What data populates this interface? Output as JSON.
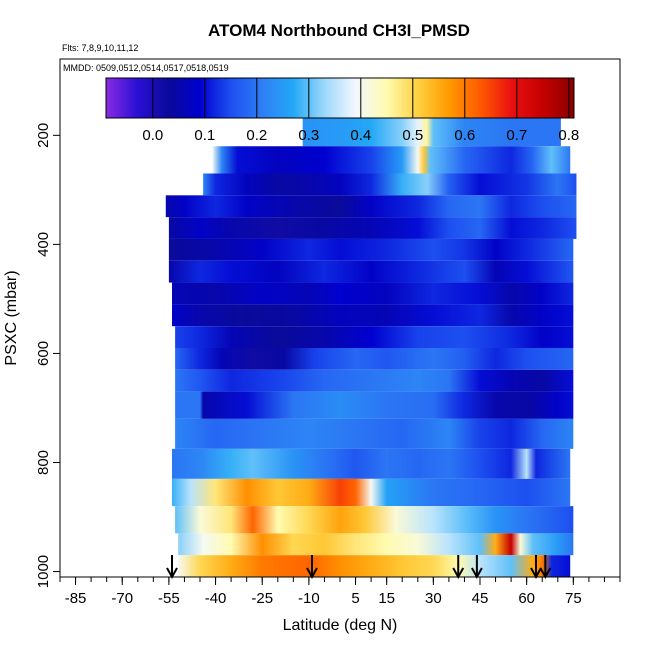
{
  "chart_data": {
    "type": "heatmap",
    "title": "ATOM4 Northbound CH3I_PMSD",
    "meta_flights": "Flts: 7,8,9,10,11,12",
    "meta_dates": "MMDD: 0509,0512,0514,0517,0518,0519",
    "xlabel": "Latitude (deg N)",
    "ylabel": "PSXC (mbar)",
    "xlim": [
      -90,
      90
    ],
    "ylim": [
      1010,
      60
    ],
    "y_inverted": true,
    "x_ticks": [
      -85,
      -70,
      -55,
      -40,
      -25,
      -10,
      5,
      15,
      30,
      45,
      60,
      75
    ],
    "x_tick_labels": [
      "-85",
      "-70",
      "-55",
      "-40",
      "-25",
      "-10",
      "5",
      "15",
      "30",
      "45",
      "60",
      "75"
    ],
    "y_ticks": [
      200,
      400,
      600,
      800,
      1000
    ],
    "y_tick_labels": [
      "200",
      "400",
      "600",
      "800",
      "1000"
    ],
    "colorbar": {
      "range": [
        -0.09,
        0.81
      ],
      "ticks": [
        0.0,
        0.1,
        0.2,
        0.3,
        0.4,
        0.5,
        0.6,
        0.7,
        0.8
      ],
      "tick_labels": [
        "0.0",
        "0.1",
        "0.2",
        "0.3",
        "0.4",
        "0.5",
        "0.6",
        "0.7",
        "0.8"
      ],
      "colors": [
        "#8a2be2",
        "#2b0fd6",
        "#0a0a9a",
        "#0000d0",
        "#1d4ff0",
        "#2e7ef5",
        "#23a8f6",
        "#9cd8fb",
        "#f3f8ff",
        "#fffbb0",
        "#ffd040",
        "#ff9a00",
        "#ff5a00",
        "#ea1010",
        "#c40000",
        "#8a0000"
      ]
    },
    "arrow_latitudes": [
      -54,
      -9,
      38,
      44,
      63,
      66
    ],
    "levels": [
      {
        "p_min": 165,
        "p_max": 220,
        "lat_min": -12,
        "lat_max": 71,
        "nodes": [
          [
            -12,
            0.24
          ],
          [
            0,
            0.25
          ],
          [
            10,
            0.27
          ],
          [
            20,
            0.32
          ],
          [
            25,
            0.38
          ],
          [
            28,
            0.46
          ],
          [
            30,
            0.3
          ],
          [
            40,
            0.22
          ],
          [
            55,
            0.2
          ],
          [
            71,
            0.2
          ]
        ]
      },
      {
        "p_min": 220,
        "p_max": 270,
        "lat_min": -41,
        "lat_max": 74,
        "nodes": [
          [
            -41,
            0.4
          ],
          [
            -38,
            0.22
          ],
          [
            -33,
            0.1
          ],
          [
            -20,
            0.07
          ],
          [
            -5,
            0.09
          ],
          [
            10,
            0.14
          ],
          [
            20,
            0.25
          ],
          [
            25,
            0.4
          ],
          [
            27,
            0.52
          ],
          [
            29,
            0.3
          ],
          [
            40,
            0.18
          ],
          [
            55,
            0.12
          ],
          [
            62,
            0.18
          ],
          [
            68,
            0.3
          ],
          [
            74,
            0.2
          ]
        ]
      },
      {
        "p_min": 270,
        "p_max": 310,
        "lat_min": -44,
        "lat_max": 76,
        "nodes": [
          [
            -44,
            0.22
          ],
          [
            -40,
            0.12
          ],
          [
            -30,
            0.07
          ],
          [
            -20,
            0.04
          ],
          [
            -10,
            0.05
          ],
          [
            0,
            0.07
          ],
          [
            10,
            0.12
          ],
          [
            20,
            0.28
          ],
          [
            28,
            0.32
          ],
          [
            35,
            0.17
          ],
          [
            45,
            0.1
          ],
          [
            60,
            0.13
          ],
          [
            70,
            0.2
          ],
          [
            76,
            0.15
          ]
        ]
      },
      {
        "p_min": 310,
        "p_max": 350,
        "lat_min": -56,
        "lat_max": 76,
        "nodes": [
          [
            -56,
            0.05
          ],
          [
            -50,
            0.08
          ],
          [
            -40,
            0.12
          ],
          [
            -30,
            0.08
          ],
          [
            -15,
            0.05
          ],
          [
            0,
            0.03
          ],
          [
            10,
            0.08
          ],
          [
            25,
            0.12
          ],
          [
            35,
            0.18
          ],
          [
            45,
            0.2
          ],
          [
            55,
            0.12
          ],
          [
            65,
            0.15
          ],
          [
            76,
            0.18
          ]
        ]
      },
      {
        "p_min": 350,
        "p_max": 390,
        "lat_min": -55,
        "lat_max": 76,
        "nodes": [
          [
            -55,
            0.04
          ],
          [
            -45,
            0.08
          ],
          [
            -35,
            0.05
          ],
          [
            -20,
            0.02
          ],
          [
            -5,
            0.04
          ],
          [
            10,
            0.06
          ],
          [
            25,
            0.1
          ],
          [
            35,
            0.15
          ],
          [
            45,
            0.18
          ],
          [
            55,
            0.1
          ],
          [
            65,
            0.12
          ],
          [
            76,
            0.15
          ]
        ]
      },
      {
        "p_min": 390,
        "p_max": 430,
        "lat_min": -55,
        "lat_max": 75,
        "nodes": [
          [
            -55,
            0.03
          ],
          [
            -40,
            0.05
          ],
          [
            -25,
            0.08
          ],
          [
            -10,
            0.12
          ],
          [
            0,
            0.1
          ],
          [
            15,
            0.12
          ],
          [
            30,
            0.15
          ],
          [
            40,
            0.13
          ],
          [
            50,
            0.08
          ],
          [
            60,
            0.12
          ],
          [
            75,
            0.18
          ]
        ]
      },
      {
        "p_min": 430,
        "p_max": 470,
        "lat_min": -55,
        "lat_max": 75,
        "nodes": [
          [
            -55,
            0.05
          ],
          [
            -45,
            0.12
          ],
          [
            -35,
            0.1
          ],
          [
            -20,
            0.07
          ],
          [
            -5,
            0.12
          ],
          [
            10,
            0.08
          ],
          [
            25,
            0.12
          ],
          [
            40,
            0.15
          ],
          [
            50,
            0.06
          ],
          [
            60,
            0.1
          ],
          [
            75,
            0.16
          ]
        ]
      },
      {
        "p_min": 470,
        "p_max": 510,
        "lat_min": -54,
        "lat_max": 75,
        "nodes": [
          [
            -54,
            0.06
          ],
          [
            -40,
            0.05
          ],
          [
            -25,
            0.08
          ],
          [
            -10,
            0.06
          ],
          [
            0,
            0.09
          ],
          [
            15,
            0.07
          ],
          [
            30,
            0.12
          ],
          [
            45,
            0.1
          ],
          [
            55,
            0.05
          ],
          [
            65,
            0.08
          ],
          [
            75,
            0.12
          ]
        ]
      },
      {
        "p_min": 510,
        "p_max": 550,
        "lat_min": -54,
        "lat_max": 75,
        "nodes": [
          [
            -54,
            0.08
          ],
          [
            -45,
            0.05
          ],
          [
            -30,
            0.03
          ],
          [
            -15,
            0.04
          ],
          [
            0,
            0.07
          ],
          [
            15,
            0.06
          ],
          [
            30,
            0.1
          ],
          [
            45,
            0.12
          ],
          [
            55,
            0.05
          ],
          [
            65,
            0.08
          ],
          [
            75,
            0.1
          ]
        ]
      },
      {
        "p_min": 550,
        "p_max": 590,
        "lat_min": -53,
        "lat_max": 75,
        "nodes": [
          [
            -53,
            0.14
          ],
          [
            -45,
            0.12
          ],
          [
            -35,
            0.06
          ],
          [
            -20,
            0.03
          ],
          [
            -5,
            0.05
          ],
          [
            10,
            0.09
          ],
          [
            25,
            0.14
          ],
          [
            40,
            0.15
          ],
          [
            55,
            0.12
          ],
          [
            65,
            0.08
          ],
          [
            75,
            0.1
          ]
        ]
      },
      {
        "p_min": 590,
        "p_max": 630,
        "lat_min": -53,
        "lat_max": 75,
        "nodes": [
          [
            -53,
            0.18
          ],
          [
            -45,
            0.12
          ],
          [
            -38,
            0.06
          ],
          [
            -28,
            0.02
          ],
          [
            -18,
            0.04
          ],
          [
            -8,
            0.14
          ],
          [
            5,
            0.18
          ],
          [
            15,
            0.16
          ],
          [
            30,
            0.2
          ],
          [
            40,
            0.17
          ],
          [
            50,
            0.12
          ],
          [
            60,
            0.15
          ],
          [
            75,
            0.18
          ]
        ]
      },
      {
        "p_min": 630,
        "p_max": 670,
        "lat_min": -53,
        "lat_max": 75,
        "nodes": [
          [
            -53,
            0.2
          ],
          [
            -45,
            0.16
          ],
          [
            -35,
            0.12
          ],
          [
            -20,
            0.14
          ],
          [
            -5,
            0.18
          ],
          [
            10,
            0.2
          ],
          [
            25,
            0.22
          ],
          [
            35,
            0.2
          ],
          [
            45,
            0.1
          ],
          [
            55,
            0.06
          ],
          [
            65,
            0.04
          ],
          [
            75,
            0.1
          ]
        ]
      },
      {
        "p_min": 670,
        "p_max": 720,
        "lat_min": -53,
        "lat_max": 75,
        "nodes": [
          [
            -53,
            0.2
          ],
          [
            -45,
            0.2
          ],
          [
            -44,
            0.05
          ],
          [
            -30,
            0.1
          ],
          [
            -15,
            0.2
          ],
          [
            0,
            0.23
          ],
          [
            15,
            0.2
          ],
          [
            30,
            0.19
          ],
          [
            40,
            0.12
          ],
          [
            50,
            0.05
          ],
          [
            60,
            0.04
          ],
          [
            70,
            0.08
          ],
          [
            75,
            0.1
          ]
        ]
      },
      {
        "p_min": 720,
        "p_max": 775,
        "lat_min": -53,
        "lat_max": 75,
        "nodes": [
          [
            -53,
            0.22
          ],
          [
            -40,
            0.18
          ],
          [
            -25,
            0.2
          ],
          [
            -10,
            0.22
          ],
          [
            5,
            0.2
          ],
          [
            20,
            0.18
          ],
          [
            35,
            0.22
          ],
          [
            45,
            0.14
          ],
          [
            55,
            0.12
          ],
          [
            65,
            0.18
          ],
          [
            75,
            0.22
          ]
        ]
      },
      {
        "p_min": 775,
        "p_max": 830,
        "lat_min": -54,
        "lat_max": 74,
        "nodes": [
          [
            -54,
            0.2
          ],
          [
            -45,
            0.22
          ],
          [
            -35,
            0.28
          ],
          [
            -28,
            0.3
          ],
          [
            -15,
            0.24
          ],
          [
            -5,
            0.2
          ],
          [
            5,
            0.16
          ],
          [
            15,
            0.2
          ],
          [
            25,
            0.18
          ],
          [
            35,
            0.2
          ],
          [
            45,
            0.15
          ],
          [
            55,
            0.12
          ],
          [
            60,
            0.35
          ],
          [
            63,
            0.12
          ],
          [
            74,
            0.2
          ]
        ]
      },
      {
        "p_min": 830,
        "p_max": 880,
        "lat_min": -54,
        "lat_max": 74,
        "nodes": [
          [
            -54,
            0.28
          ],
          [
            -48,
            0.35
          ],
          [
            -40,
            0.48
          ],
          [
            -30,
            0.58
          ],
          [
            -20,
            0.52
          ],
          [
            -10,
            0.55
          ],
          [
            0,
            0.65
          ],
          [
            5,
            0.62
          ],
          [
            10,
            0.4
          ],
          [
            15,
            0.26
          ],
          [
            30,
            0.2
          ],
          [
            45,
            0.18
          ],
          [
            60,
            0.15
          ],
          [
            74,
            0.2
          ]
        ]
      },
      {
        "p_min": 880,
        "p_max": 930,
        "lat_min": -53,
        "lat_max": 75,
        "nodes": [
          [
            -53,
            0.3
          ],
          [
            -45,
            0.42
          ],
          [
            -35,
            0.48
          ],
          [
            -28,
            0.62
          ],
          [
            -20,
            0.45
          ],
          [
            -10,
            0.5
          ],
          [
            0,
            0.56
          ],
          [
            8,
            0.52
          ],
          [
            18,
            0.42
          ],
          [
            30,
            0.35
          ],
          [
            40,
            0.3
          ],
          [
            50,
            0.24
          ],
          [
            60,
            0.2
          ],
          [
            75,
            0.15
          ]
        ]
      },
      {
        "p_min": 930,
        "p_max": 970,
        "lat_min": -52,
        "lat_max": 75,
        "nodes": [
          [
            -52,
            0.32
          ],
          [
            -44,
            0.4
          ],
          [
            -35,
            0.45
          ],
          [
            -25,
            0.58
          ],
          [
            -15,
            0.5
          ],
          [
            -5,
            0.52
          ],
          [
            5,
            0.48
          ],
          [
            15,
            0.45
          ],
          [
            25,
            0.42
          ],
          [
            35,
            0.35
          ],
          [
            45,
            0.3
          ],
          [
            50,
            0.55
          ],
          [
            55,
            0.75
          ],
          [
            58,
            0.42
          ],
          [
            62,
            0.3
          ],
          [
            70,
            0.25
          ],
          [
            75,
            0.2
          ]
        ]
      },
      {
        "p_min": 970,
        "p_max": 1010,
        "lat_min": -52,
        "lat_max": 74,
        "nodes": [
          [
            -52,
            0.4
          ],
          [
            -45,
            0.5
          ],
          [
            -35,
            0.55
          ],
          [
            -25,
            0.6
          ],
          [
            -10,
            0.62
          ],
          [
            0,
            0.58
          ],
          [
            10,
            0.55
          ],
          [
            20,
            0.52
          ],
          [
            30,
            0.5
          ],
          [
            38,
            0.45
          ],
          [
            45,
            0.35
          ],
          [
            55,
            0.3
          ],
          [
            62,
            0.55
          ],
          [
            65,
            0.6
          ],
          [
            68,
            0.12
          ],
          [
            74,
            0.1
          ]
        ]
      }
    ]
  }
}
